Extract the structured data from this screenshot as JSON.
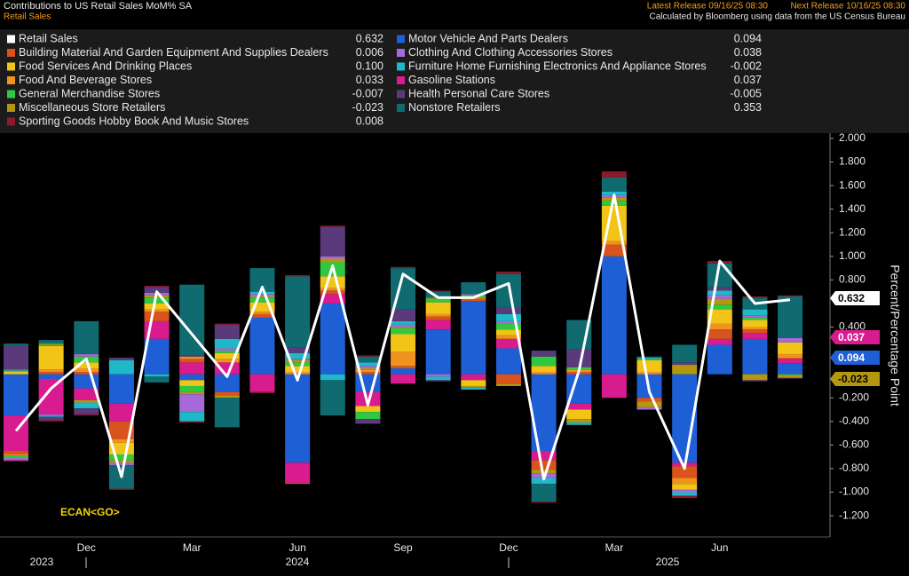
{
  "chart_data": {
    "type": "bar",
    "title": "Contributions to US Retail Sales MoM% SA",
    "subtitle": "Retail Sales",
    "latest_release": "Latest Release 09/16/25 08:30",
    "next_release": "Next Release 10/16/25 08:30",
    "source": "Calculated by Bloomberg using data from the US Census Bureau",
    "y_label": "Percent/Percentage Point",
    "annotation": "ECAN<GO>",
    "categories": [
      null,
      null,
      "Dec",
      null,
      null,
      "Mar",
      null,
      null,
      "Jun",
      null,
      null,
      "Sep",
      null,
      null,
      "Dec",
      null,
      null,
      "Mar",
      null,
      null,
      "Jun",
      null,
      null
    ],
    "years": [
      "2023",
      "2024",
      "2025"
    ],
    "ylim": [
      -1.38,
      2.045
    ],
    "yticks": [
      {
        "value": 2.0,
        "label": "2.000"
      },
      {
        "value": 1.8,
        "label": "1.800"
      },
      {
        "value": 1.6,
        "label": "1.600"
      },
      {
        "value": 1.4,
        "label": "1.400"
      },
      {
        "value": 1.2,
        "label": "1.200"
      },
      {
        "value": 1.0,
        "label": "1.000"
      },
      {
        "value": 0.8,
        "label": "0.800"
      },
      {
        "value": 0.4,
        "label": "0.400"
      },
      {
        "value": -0.2,
        "label": "-0.200"
      },
      {
        "value": -0.4,
        "label": "-0.400"
      },
      {
        "value": -0.6,
        "label": "-0.600"
      },
      {
        "value": -0.8,
        "label": "-0.800"
      },
      {
        "value": -1.0,
        "label": "-1.000"
      },
      {
        "value": -1.2,
        "label": "-1.200"
      }
    ],
    "series": [
      {
        "name": "Retail Sales",
        "type": "line",
        "color": "#ffffff",
        "last_value": "0.632",
        "values": [
          -0.48,
          -0.12,
          0.13,
          -0.87,
          0.7,
          0.34,
          -0.02,
          0.74,
          -0.05,
          0.92,
          -0.26,
          0.85,
          0.65,
          0.65,
          0.77,
          -0.89,
          0.03,
          1.52,
          -0.15,
          -0.8,
          0.96,
          0.6,
          0.632
        ]
      },
      {
        "name": "Building Material And Garden Equipment And Supplies Dealers",
        "color": "#d9531e",
        "last_value": "0.006",
        "values": [
          -0.03,
          0.02,
          0.02,
          -0.15,
          0.08,
          0.03,
          -0.03,
          0.03,
          -0.01,
          0.03,
          0.02,
          0.02,
          0.03,
          0.02,
          -0.08,
          -0.08,
          0.02,
          0.1,
          -0.03,
          -0.1,
          0.08,
          0.03,
          0.006
        ]
      },
      {
        "name": "Food Services And Drinking Places",
        "color": "#f2c417",
        "last_value": "0.100",
        "values": [
          0.02,
          0.2,
          0.05,
          -0.1,
          0.05,
          -0.05,
          0.05,
          0.08,
          0.05,
          0.1,
          -0.05,
          0.15,
          0.1,
          -0.05,
          0.05,
          0.05,
          -0.08,
          0.3,
          0.1,
          -0.05,
          0.12,
          0.06,
          0.1
        ]
      },
      {
        "name": "Food And Beverage Stores",
        "color": "#f0921e",
        "last_value": "0.033",
        "values": [
          -0.01,
          0.02,
          0.03,
          -0.03,
          0.02,
          0.02,
          0.03,
          0.02,
          0.02,
          0.02,
          0.02,
          0.12,
          0.02,
          0.01,
          0.03,
          0.02,
          0.02,
          0.03,
          0.02,
          -0.05,
          0.05,
          0.02,
          0.033
        ]
      },
      {
        "name": "General Merchandise Stores",
        "color": "#2ec940",
        "last_value": "-0.007",
        "values": [
          -0.02,
          0.01,
          0.05,
          -0.05,
          0.05,
          -0.05,
          0.02,
          0.04,
          0.03,
          0.12,
          -0.06,
          0.05,
          0.03,
          0.02,
          0.05,
          0.08,
          0.02,
          0.04,
          0.01,
          0,
          0.04,
          0.02,
          -0.007
        ]
      },
      {
        "name": "Miscellaneous Store Retailers",
        "color": "#b3980f",
        "last_value": "-0.023",
        "values": [
          0.01,
          0.01,
          -0.02,
          -0.02,
          0.02,
          -0.02,
          -0.02,
          0.01,
          0.02,
          0.03,
          0.01,
          0.01,
          0.01,
          -0.01,
          -0.02,
          -0.03,
          -0.03,
          0.03,
          -0.05,
          0.08,
          0.05,
          -0.05,
          -0.023
        ]
      },
      {
        "name": "Sporting Goods Hobby Book And Music Stores",
        "color": "#8c1a2c",
        "last_value": "0.008",
        "values": [
          -0.01,
          -0.01,
          -0.01,
          -0.01,
          0.01,
          -0.01,
          0.01,
          -0.01,
          0.01,
          0.01,
          0.01,
          0.01,
          0.01,
          0,
          0.02,
          -0.01,
          0,
          0.05,
          0,
          -0.02,
          0.02,
          0.01,
          0.008
        ]
      },
      {
        "name": "Motor Vehicle And Parts Dealers",
        "color": "#1f5fd6",
        "last_value": "0.094",
        "values": [
          -0.35,
          -0.04,
          -0.12,
          -0.25,
          0.3,
          -0.05,
          -0.15,
          0.48,
          -0.75,
          0.6,
          -0.15,
          0.05,
          0.38,
          0.62,
          0.22,
          -0.65,
          -0.25,
          1.0,
          -0.2,
          -0.75,
          0.25,
          0.3,
          0.094
        ]
      },
      {
        "name": "Clothing And Clothing Accessories Stores",
        "color": "#a66ad8",
        "last_value": "0.038",
        "values": [
          -0.02,
          -0.01,
          0.02,
          -0.02,
          0.02,
          -0.15,
          0.02,
          0.02,
          0.01,
          0.02,
          0.02,
          0.02,
          -0.02,
          0.01,
          0.02,
          -0.04,
          0,
          0.02,
          -0.02,
          -0.02,
          0.03,
          0.02,
          0.038
        ]
      },
      {
        "name": "Furniture Home Furnishing Electronics And Appliance Stores",
        "color": "#1eb8c8",
        "last_value": "-0.002",
        "values": [
          0.01,
          -0.01,
          -0.05,
          0.12,
          -0.02,
          -0.08,
          0.08,
          0.02,
          0.05,
          -0.05,
          0.03,
          0.03,
          -0.03,
          -0.02,
          0.06,
          -0.05,
          -0.02,
          0.03,
          0.01,
          -0.03,
          0.04,
          0.05,
          -0.002
        ]
      },
      {
        "name": "Gasoline Stations",
        "color": "#d81b8f",
        "last_value": "0.037",
        "values": [
          -0.3,
          -0.3,
          -0.1,
          -0.15,
          0.15,
          0.1,
          0.1,
          -0.15,
          -0.17,
          0.08,
          -0.12,
          -0.08,
          0.08,
          -0.05,
          0.08,
          -0.08,
          -0.05,
          -0.2,
          0,
          -0.03,
          0.05,
          0.05,
          0.037
        ]
      },
      {
        "name": "Health Personal Care Stores",
        "color": "#5b3a7c",
        "last_value": "-0.005",
        "values": [
          0.2,
          -0.03,
          -0.05,
          0.02,
          0.05,
          0.01,
          0.12,
          0,
          0.05,
          0.25,
          -0.04,
          0.1,
          -0.01,
          0,
          0.06,
          0.05,
          0.15,
          0,
          0,
          0.02,
          0.03,
          -0.01,
          -0.005
        ]
      },
      {
        "name": "Nonstore Retailers",
        "color": "#0f6b70",
        "last_value": "0.353",
        "values": [
          0.02,
          0.03,
          0.28,
          -0.2,
          -0.05,
          0.6,
          -0.25,
          0.2,
          0.6,
          -0.3,
          0.05,
          0.35,
          0.05,
          0.1,
          0.28,
          -0.15,
          0.25,
          0.12,
          0.01,
          0.15,
          0.2,
          0.1,
          0.353
        ]
      }
    ]
  }
}
